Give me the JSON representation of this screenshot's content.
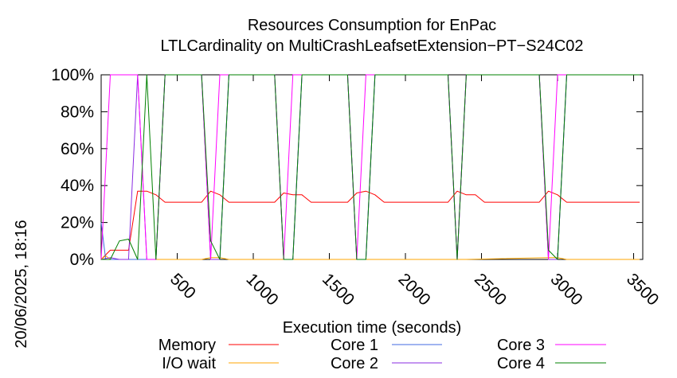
{
  "chart_data": {
    "type": "line",
    "title": "Resources Consumption for EnPac",
    "subtitle": "LTLCardinality on MultiCrashLeafsetExtension−PT−S24C02",
    "xlabel": "Execution time (seconds)",
    "ylabel": "",
    "side_label": "20/06/2025, 18:16",
    "xlim": [
      0,
      3560
    ],
    "ylim": [
      0,
      100
    ],
    "x_ticks": [
      500,
      1000,
      1500,
      2000,
      2500,
      3000,
      3500
    ],
    "y_ticks": [
      0,
      20,
      40,
      60,
      80,
      100
    ],
    "y_tick_labels": [
      "0%",
      "20%",
      "40%",
      "60%",
      "80%",
      "100%"
    ],
    "legend_position": "bottom",
    "grid": false,
    "series": [
      {
        "name": "Memory",
        "color": "#ff0000",
        "points": [
          [
            0,
            0
          ],
          [
            60,
            5
          ],
          [
            120,
            5
          ],
          [
            180,
            5
          ],
          [
            240,
            37
          ],
          [
            300,
            37
          ],
          [
            360,
            35
          ],
          [
            420,
            31
          ],
          [
            480,
            31
          ],
          [
            540,
            31
          ],
          [
            600,
            31
          ],
          [
            660,
            31
          ],
          [
            720,
            37
          ],
          [
            780,
            35
          ],
          [
            840,
            31
          ],
          [
            900,
            31
          ],
          [
            960,
            31
          ],
          [
            1020,
            31
          ],
          [
            1080,
            31
          ],
          [
            1140,
            31
          ],
          [
            1200,
            36
          ],
          [
            1260,
            35
          ],
          [
            1320,
            35
          ],
          [
            1380,
            31
          ],
          [
            1440,
            31
          ],
          [
            1500,
            31
          ],
          [
            1560,
            31
          ],
          [
            1620,
            31
          ],
          [
            1680,
            36
          ],
          [
            1740,
            37
          ],
          [
            1800,
            35
          ],
          [
            1860,
            31
          ],
          [
            1920,
            31
          ],
          [
            1980,
            31
          ],
          [
            2040,
            31
          ],
          [
            2100,
            31
          ],
          [
            2160,
            31
          ],
          [
            2220,
            31
          ],
          [
            2280,
            31
          ],
          [
            2340,
            37
          ],
          [
            2400,
            35
          ],
          [
            2460,
            35
          ],
          [
            2520,
            31
          ],
          [
            2580,
            31
          ],
          [
            2640,
            31
          ],
          [
            2700,
            31
          ],
          [
            2760,
            31
          ],
          [
            2820,
            31
          ],
          [
            2880,
            31
          ],
          [
            2940,
            37
          ],
          [
            3000,
            35
          ],
          [
            3060,
            31
          ],
          [
            3120,
            31
          ],
          [
            3180,
            31
          ],
          [
            3240,
            31
          ],
          [
            3300,
            31
          ],
          [
            3360,
            31
          ],
          [
            3420,
            31
          ],
          [
            3480,
            31
          ],
          [
            3540,
            31
          ]
        ]
      },
      {
        "name": "I/O wait",
        "color": "#ffa500",
        "points": [
          [
            0,
            0
          ],
          [
            30,
            2
          ],
          [
            60,
            0
          ],
          [
            120,
            0
          ],
          [
            180,
            0
          ],
          [
            240,
            0
          ],
          [
            660,
            0
          ],
          [
            720,
            1
          ],
          [
            780,
            1
          ],
          [
            840,
            0
          ],
          [
            1140,
            0
          ],
          [
            1260,
            0
          ],
          [
            1320,
            0
          ],
          [
            1680,
            0
          ],
          [
            1800,
            0
          ],
          [
            2340,
            0
          ],
          [
            2400,
            0
          ],
          [
            2940,
            1
          ],
          [
            3000,
            1
          ],
          [
            3060,
            0
          ],
          [
            3540,
            0
          ]
        ]
      },
      {
        "name": "Core 1",
        "color": "#4169e1",
        "points": [
          [
            0,
            20
          ],
          [
            30,
            0
          ],
          [
            60,
            0
          ],
          [
            120,
            0
          ],
          [
            180,
            0
          ],
          [
            240,
            0
          ],
          [
            360,
            0
          ],
          [
            420,
            100
          ],
          [
            660,
            100
          ],
          [
            720,
            0
          ],
          [
            780,
            0
          ],
          [
            840,
            100
          ],
          [
            1140,
            100
          ],
          [
            1200,
            0
          ],
          [
            1260,
            0
          ],
          [
            1320,
            100
          ],
          [
            1620,
            100
          ],
          [
            1680,
            0
          ],
          [
            1740,
            0
          ],
          [
            1800,
            100
          ],
          [
            2280,
            100
          ],
          [
            2340,
            0
          ],
          [
            2400,
            100
          ],
          [
            2880,
            100
          ],
          [
            2940,
            0
          ],
          [
            3000,
            0
          ],
          [
            3060,
            100
          ],
          [
            3540,
            100
          ]
        ]
      },
      {
        "name": "Core 2",
        "color": "#8a2be2",
        "points": [
          [
            0,
            0
          ],
          [
            60,
            1
          ],
          [
            120,
            0
          ],
          [
            180,
            0
          ],
          [
            240,
            100
          ],
          [
            300,
            0
          ],
          [
            360,
            0
          ],
          [
            420,
            100
          ],
          [
            660,
            100
          ],
          [
            720,
            0
          ],
          [
            780,
            0
          ],
          [
            840,
            100
          ],
          [
            1140,
            100
          ],
          [
            1200,
            0
          ],
          [
            1260,
            0
          ],
          [
            1320,
            100
          ],
          [
            1620,
            100
          ],
          [
            1680,
            0
          ],
          [
            1740,
            0
          ],
          [
            1800,
            100
          ],
          [
            2280,
            100
          ],
          [
            2340,
            0
          ],
          [
            2400,
            100
          ],
          [
            2880,
            100
          ],
          [
            2940,
            0
          ],
          [
            3000,
            0
          ],
          [
            3060,
            100
          ],
          [
            3540,
            100
          ]
        ]
      },
      {
        "name": "Core 3",
        "color": "#ff00ff",
        "points": [
          [
            0,
            0
          ],
          [
            60,
            100
          ],
          [
            120,
            100
          ],
          [
            180,
            100
          ],
          [
            240,
            100
          ],
          [
            300,
            0
          ],
          [
            360,
            0
          ],
          [
            420,
            100
          ],
          [
            660,
            100
          ],
          [
            720,
            0
          ],
          [
            780,
            100
          ],
          [
            840,
            100
          ],
          [
            1140,
            100
          ],
          [
            1200,
            0
          ],
          [
            1260,
            100
          ],
          [
            1320,
            100
          ],
          [
            1620,
            100
          ],
          [
            1680,
            0
          ],
          [
            1740,
            100
          ],
          [
            1800,
            100
          ],
          [
            2280,
            100
          ],
          [
            2340,
            0
          ],
          [
            2400,
            100
          ],
          [
            2880,
            100
          ],
          [
            2940,
            0
          ],
          [
            3000,
            100
          ],
          [
            3060,
            100
          ],
          [
            3540,
            100
          ]
        ]
      },
      {
        "name": "Core 4",
        "color": "#008000",
        "points": [
          [
            0,
            0
          ],
          [
            60,
            0
          ],
          [
            120,
            10
          ],
          [
            180,
            11
          ],
          [
            240,
            0
          ],
          [
            300,
            100
          ],
          [
            360,
            0
          ],
          [
            420,
            100
          ],
          [
            660,
            100
          ],
          [
            720,
            10
          ],
          [
            780,
            0
          ],
          [
            840,
            100
          ],
          [
            1140,
            100
          ],
          [
            1200,
            0
          ],
          [
            1260,
            0
          ],
          [
            1320,
            100
          ],
          [
            1620,
            100
          ],
          [
            1680,
            0
          ],
          [
            1740,
            0
          ],
          [
            1800,
            100
          ],
          [
            2280,
            100
          ],
          [
            2340,
            0
          ],
          [
            2400,
            100
          ],
          [
            2880,
            100
          ],
          [
            2940,
            5
          ],
          [
            3000,
            0
          ],
          [
            3060,
            100
          ],
          [
            3540,
            100
          ]
        ]
      }
    ]
  }
}
